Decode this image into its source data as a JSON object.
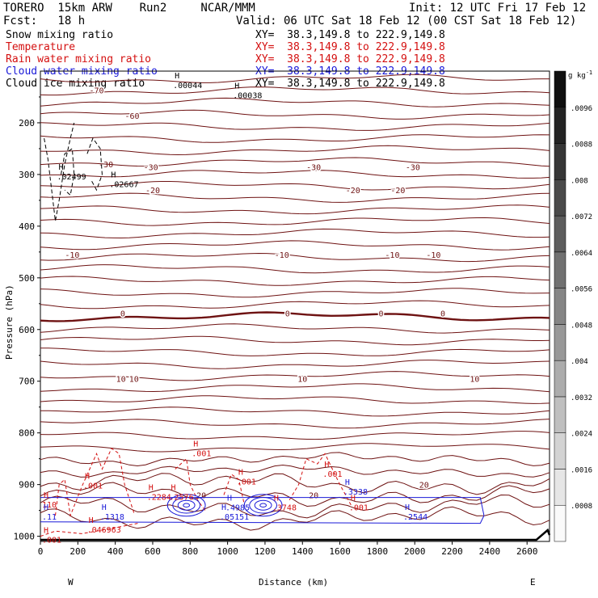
{
  "header": {
    "model": "TORERO  15km ARW    Run2     NCAR/MMM",
    "forecast": "Fcst:   18 h",
    "init": "Init: 12 UTC Fri 17 Feb 12",
    "valid": "Valid: 06 UTC Sat 18 Feb 12 (00 CST Sat 18 Feb 12)"
  },
  "legend": [
    {
      "name": "Snow mixing ratio",
      "xy": "XY=  38.3,149.8 to 222.9,149.8",
      "color": "#000000"
    },
    {
      "name": "Temperature",
      "xy": "XY=  38.3,149.8 to 222.9,149.8",
      "color": "#d41010"
    },
    {
      "name": "Rain water mixing ratio",
      "xy": "XY=  38.3,149.8 to 222.9,149.8",
      "color": "#d41010"
    },
    {
      "name": "Cloud water mixing ratio",
      "xy": "XY=  38.3,149.8 to 222.9,149.8",
      "color": "#1a1ad8"
    },
    {
      "name": "Cloud ice mixing ratio",
      "xy": "XY=  38.3,149.8 to 222.9,149.8",
      "color": "#000000"
    }
  ],
  "chart_data": {
    "type": "line",
    "xlabel": "Distance (km)",
    "ylabel": "Pressure (hPa)",
    "xlim": [
      0,
      2720
    ],
    "ylim": [
      1010,
      100
    ],
    "xticks": [
      0,
      200,
      400,
      600,
      800,
      1000,
      1200,
      1400,
      1600,
      1800,
      2000,
      2200,
      2400,
      2600
    ],
    "yticks": [
      200,
      300,
      400,
      500,
      600,
      700,
      800,
      900,
      1000
    ],
    "x_end_labels": {
      "left": "W",
      "right": "E"
    },
    "temperature_contours": [
      {
        "p": 137,
        "label": "-70",
        "label_x": [
          300
        ]
      },
      {
        "p": 186,
        "label": "-60",
        "label_x": [
          490
        ]
      },
      {
        "p": 285,
        "label": "-30",
        "label_x": [
          590,
          1460,
          1990
        ]
      },
      {
        "p": 330,
        "label": "-20",
        "label_x": [
          600,
          1670,
          1910
        ]
      },
      {
        "p": 455,
        "label": "-10",
        "label_x": [
          170,
          1290,
          1880,
          2100
        ]
      },
      {
        "p": 568,
        "label": "0",
        "label_x": [
          440,
          1320,
          1820,
          2150
        ]
      },
      {
        "p": 695,
        "label": "10",
        "label_x": [
          430,
          500,
          1400,
          2320
        ]
      },
      {
        "p": 900,
        "label": "20",
        "label_x": [
          2050
        ]
      }
    ],
    "temperature_extra_labels": [
      {
        "x": 350,
        "p": 280,
        "text": "-30"
      },
      {
        "x": 860,
        "p": 920,
        "text": "20"
      },
      {
        "x": 1460,
        "p": 920,
        "text": "20"
      }
    ],
    "maxima": [
      {
        "x": 700,
        "p": 128,
        "text": ".00044",
        "series": "Cloud ice mixing ratio"
      },
      {
        "x": 1020,
        "p": 148,
        "text": ".00038",
        "series": "Cloud ice mixing ratio"
      },
      {
        "x": 80,
        "p": 305,
        "text": ".02499",
        "series": "Snow mixing ratio"
      },
      {
        "x": 360,
        "p": 320,
        "text": ".02667",
        "series": "Snow mixing ratio"
      },
      {
        "x": 800,
        "p": 840,
        "text": ".001",
        "series": "Rain water mixing ratio"
      },
      {
        "x": 1040,
        "p": 895,
        "text": ".001",
        "series": "Rain water mixing ratio"
      },
      {
        "x": 1500,
        "p": 880,
        "text": ".001",
        "series": "Rain water mixing ratio"
      },
      {
        "x": 220,
        "p": 903,
        "text": ".001",
        "series": "Rain water mixing ratio"
      },
      {
        "x": 0,
        "p": 940,
        "text": "110",
        "series": "Rain water mixing ratio"
      },
      {
        "x": 560,
        "p": 925,
        "text": ".2284",
        "series": "Rain water mixing ratio"
      },
      {
        "x": 680,
        "p": 925,
        "text": ".2576",
        "series": "Rain water mixing ratio"
      },
      {
        "x": 1230,
        "p": 945,
        "text": ".3748",
        "series": "Rain water mixing ratio"
      },
      {
        "x": 1640,
        "p": 945,
        "text": ".001",
        "series": "Rain water mixing ratio"
      },
      {
        "x": 240,
        "p": 988,
        "text": ".046963",
        "series": "Rain water mixing ratio"
      },
      {
        "x": 0,
        "p": 1008,
        "text": ".001",
        "series": "Rain water mixing ratio"
      },
      {
        "x": 0,
        "p": 963,
        "text": ".11",
        "series": "Cloud water mixing ratio"
      },
      {
        "x": 310,
        "p": 963,
        "text": ".1318",
        "series": "Cloud water mixing ratio"
      },
      {
        "x": 980,
        "p": 945,
        "text": ".4985",
        "series": "Cloud water mixing ratio"
      },
      {
        "x": 950,
        "p": 963,
        "text": ".05151",
        "series": "Cloud water mixing ratio"
      },
      {
        "x": 1610,
        "p": 915,
        "text": ".3338",
        "series": "Cloud water mixing ratio"
      },
      {
        "x": 1930,
        "p": 963,
        "text": ".2544",
        "series": "Cloud water mixing ratio"
      }
    ],
    "colorbar": {
      "unit": "g kg",
      "unit_exponent": "-1",
      "ticks": [
        ".0008",
        ".0016",
        ".0024",
        ".0032",
        ".004",
        ".0048",
        ".0056",
        ".0064",
        ".0072",
        ".008",
        ".0088",
        ".0096"
      ]
    },
    "grid": false
  }
}
